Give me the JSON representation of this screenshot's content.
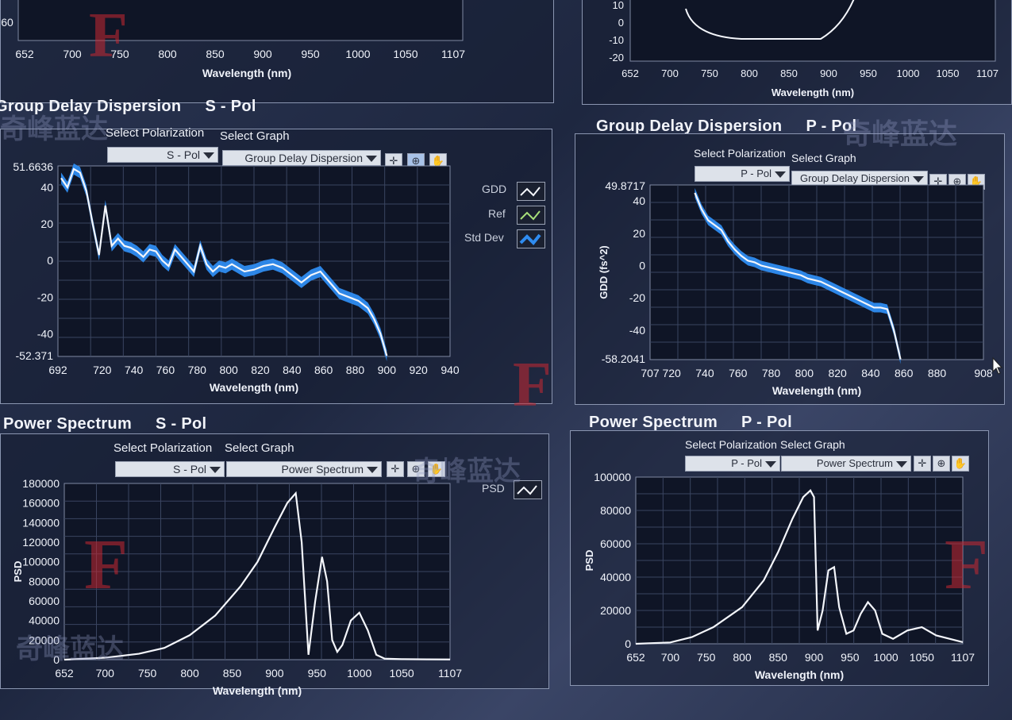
{
  "top_left_axis": {
    "ticks": [
      "652",
      "700",
      "750",
      "800",
      "850",
      "900",
      "950",
      "1000",
      "1050",
      "1107"
    ],
    "ytick": "60",
    "xlabel": "Wavelength (nm)"
  },
  "top_right_axis": {
    "yticks": [
      "10",
      "0",
      "-10",
      "-20"
    ],
    "xticks": [
      "652",
      "700",
      "750",
      "800",
      "850",
      "900",
      "950",
      "1000",
      "1050",
      "1107"
    ],
    "xlabel": "Wavelength (nm)"
  },
  "gdd_s": {
    "title": "Group Delay Dispersion",
    "pol": "S - Pol",
    "select_polarization_label": "Select Polarization",
    "select_graph_label": "Select Graph",
    "polarization_value": "S - Pol",
    "graph_value": "Group Delay Dispersion",
    "legend": [
      "GDD",
      "Ref",
      "Std Dev"
    ],
    "colors": {
      "gdd": "#f4f6fb",
      "ref": "#a8e07a",
      "std": "#2f8cf0"
    },
    "chart_data": {
      "type": "line",
      "xlabel": "Wavelength (nm)",
      "ylabel": "",
      "ymax_label": "51.6636",
      "ymin_label": "-52.371",
      "ylim": [
        -52.371,
        51.6636
      ],
      "xlim": [
        692,
        940
      ],
      "xticks": [
        "692",
        "720",
        "740",
        "760",
        "780",
        "800",
        "820",
        "840",
        "860",
        "880",
        "900",
        "920",
        "940"
      ],
      "yticks": [
        "40",
        "20",
        "0",
        "-20",
        "-40"
      ],
      "series": [
        {
          "name": "GDD",
          "x": [
            694,
            698,
            702,
            706,
            710,
            714,
            718,
            722,
            726,
            730,
            734,
            738,
            742,
            746,
            750,
            754,
            758,
            762,
            766,
            770,
            774,
            778,
            782,
            786,
            790,
            794,
            798,
            802,
            806,
            810,
            816,
            822,
            828,
            834,
            840,
            846,
            852,
            858,
            864,
            870,
            876,
            882,
            888,
            892,
            896,
            900
          ],
          "y": [
            45,
            40,
            50,
            48,
            38,
            20,
            3,
            30,
            8,
            12,
            8,
            7,
            5,
            2,
            6,
            5,
            0,
            -3,
            6,
            2,
            -2,
            -6,
            8,
            -2,
            -6,
            -3,
            -4,
            -2,
            -4,
            -6,
            -5,
            -3,
            -2,
            -4,
            -8,
            -12,
            -8,
            -6,
            -12,
            -18,
            -20,
            -22,
            -26,
            -32,
            -40,
            -52
          ]
        }
      ]
    }
  },
  "gdd_p": {
    "title": "Group Delay Dispersion",
    "pol": "P - Pol",
    "select_polarization_label": "Select Polarization",
    "select_graph_label": "Select Graph",
    "polarization_value": "P - Pol",
    "graph_value": "Group Delay Dispersion",
    "colors": {
      "gdd": "#f4f6fb",
      "std": "#2f8cf0"
    },
    "chart_data": {
      "type": "line",
      "xlabel": "Wavelength (nm)",
      "ylabel": "GDD (fs^2)",
      "ymax_label": "49.8717",
      "ymin_label": "-58.2041",
      "ylim": [
        -58.2041,
        49.8717
      ],
      "xlim": [
        707,
        908
      ],
      "xticks": [
        "707",
        "720",
        "740",
        "760",
        "780",
        "800",
        "820",
        "840",
        "860",
        "880",
        "908"
      ],
      "yticks": [
        "40",
        "20",
        "0",
        "-20",
        "-40"
      ],
      "series": [
        {
          "name": "GDD",
          "x": [
            734,
            738,
            742,
            746,
            750,
            754,
            758,
            762,
            766,
            770,
            774,
            778,
            782,
            786,
            790,
            794,
            798,
            802,
            806,
            810,
            814,
            818,
            822,
            826,
            830,
            834,
            838,
            842,
            846,
            850,
            854,
            858
          ],
          "y": [
            45,
            35,
            28,
            25,
            22,
            15,
            10,
            6,
            3,
            2,
            0,
            -1,
            -2,
            -3,
            -4,
            -5,
            -6,
            -8,
            -9,
            -10,
            -12,
            -14,
            -16,
            -18,
            -20,
            -22,
            -24,
            -26,
            -26,
            -27,
            -40,
            -58
          ]
        }
      ]
    }
  },
  "ps_s": {
    "title": "Power Spectrum",
    "pol": "S - Pol",
    "select_polarization_label": "Select Polarization",
    "select_graph_label": "Select Graph",
    "polarization_value": "S - Pol",
    "graph_value": "Power Spectrum",
    "legend": [
      "PSD"
    ],
    "chart_data": {
      "type": "line",
      "xlabel": "Wavelength (nm)",
      "ylabel": "PSD",
      "ylim": [
        0,
        180000
      ],
      "xlim": [
        652,
        1107
      ],
      "xticks": [
        "652",
        "700",
        "750",
        "800",
        "850",
        "900",
        "950",
        "1000",
        "1050",
        "1107"
      ],
      "yticks": [
        "180000",
        "160000",
        "140000",
        "120000",
        "100000",
        "80000",
        "60000",
        "40000",
        "20000",
        "0"
      ],
      "series": [
        {
          "name": "PSD",
          "x": [
            652,
            700,
            740,
            770,
            800,
            830,
            860,
            880,
            900,
            915,
            925,
            932,
            940,
            948,
            956,
            962,
            968,
            974,
            980,
            990,
            1000,
            1010,
            1020,
            1030,
            1050,
            1080,
            1107
          ],
          "y": [
            0,
            2000,
            6000,
            12000,
            25000,
            45000,
            75000,
            100000,
            135000,
            160000,
            170000,
            120000,
            5000,
            60000,
            105000,
            80000,
            20000,
            8000,
            15000,
            40000,
            48000,
            30000,
            5000,
            1000,
            500,
            300,
            200
          ]
        }
      ]
    }
  },
  "ps_p": {
    "title": "Power Spectrum",
    "pol": "P - Pol",
    "select_polarization_label": "Select Polarization",
    "select_graph_label": "Select Graph",
    "polarization_value": "P - Pol",
    "graph_value": "Power Spectrum",
    "chart_data": {
      "type": "line",
      "xlabel": "Wavelength (nm)",
      "ylabel": "PSD",
      "ylim": [
        0,
        100000
      ],
      "xlim": [
        652,
        1107
      ],
      "xticks": [
        "652",
        "700",
        "750",
        "800",
        "850",
        "900",
        "950",
        "1000",
        "1050",
        "1107"
      ],
      "yticks": [
        "100000",
        "80000",
        "60000",
        "40000",
        "20000",
        "0"
      ],
      "series": [
        {
          "name": "PSD",
          "x": [
            652,
            700,
            730,
            760,
            800,
            830,
            850,
            870,
            885,
            895,
            900,
            905,
            912,
            920,
            928,
            935,
            945,
            955,
            965,
            975,
            985,
            995,
            1010,
            1030,
            1050,
            1070,
            1107
          ],
          "y": [
            0,
            800,
            4000,
            10000,
            22000,
            38000,
            55000,
            75000,
            88000,
            92000,
            88000,
            8000,
            20000,
            44000,
            46000,
            22000,
            6000,
            8000,
            18000,
            25000,
            20000,
            6000,
            3000,
            8000,
            10000,
            5000,
            1000
          ]
        }
      ]
    }
  },
  "watermark": {
    "glyph": "F",
    "cjk": "奇峰蓝达"
  }
}
